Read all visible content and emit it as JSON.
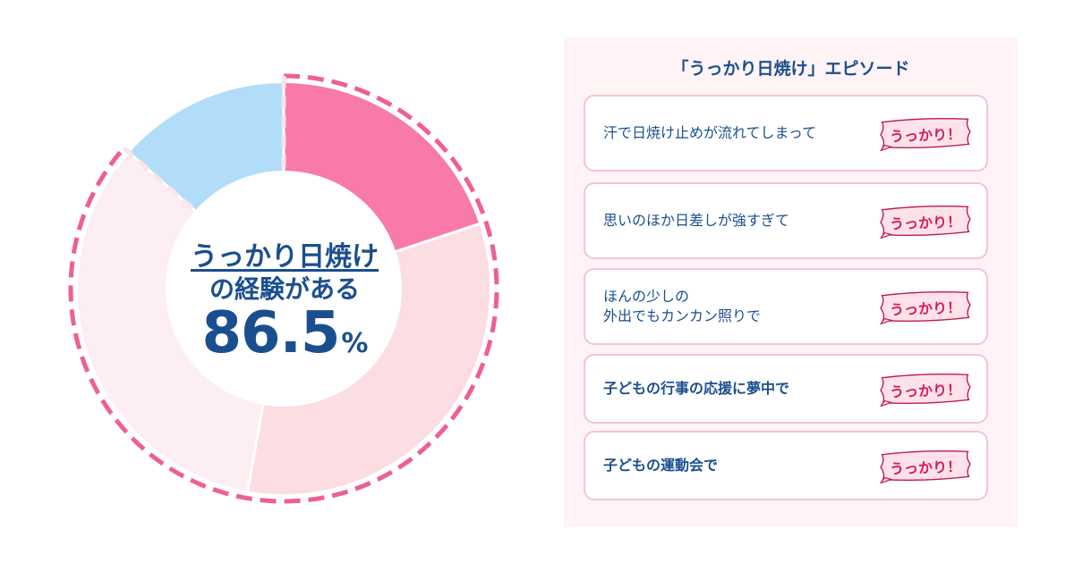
{
  "chart_data": {
    "type": "pie",
    "title": "",
    "center_label": {
      "line1": "うっかり日焼け",
      "line2": "の経験がある",
      "value": "86.5",
      "unit": "%"
    },
    "slices": [
      {
        "value": 19.9,
        "color": "#f77aaa"
      },
      {
        "value": 32.9,
        "color": "#fcdde2"
      },
      {
        "value": 33.7,
        "color": "#fdeef1"
      },
      {
        "value": 13.5,
        "color": "#b2ddf8"
      }
    ],
    "highlight_total": 86.5,
    "highlight_color": "#ee5f95"
  },
  "episodes": {
    "title": "「うっかり日焼け」エピソード",
    "badge_label": "うっかり！",
    "badge_color": "#d81b60",
    "items": [
      {
        "text": "汗で日焼け止めが流れてしまって"
      },
      {
        "text": "思いのほか日差しが強すぎて"
      },
      {
        "text": "ほんの少しの\n外出でもカンカン照りで"
      },
      {
        "text": "子どもの行事の応援に夢中で"
      },
      {
        "text": "子どもの運動会で"
      }
    ]
  }
}
